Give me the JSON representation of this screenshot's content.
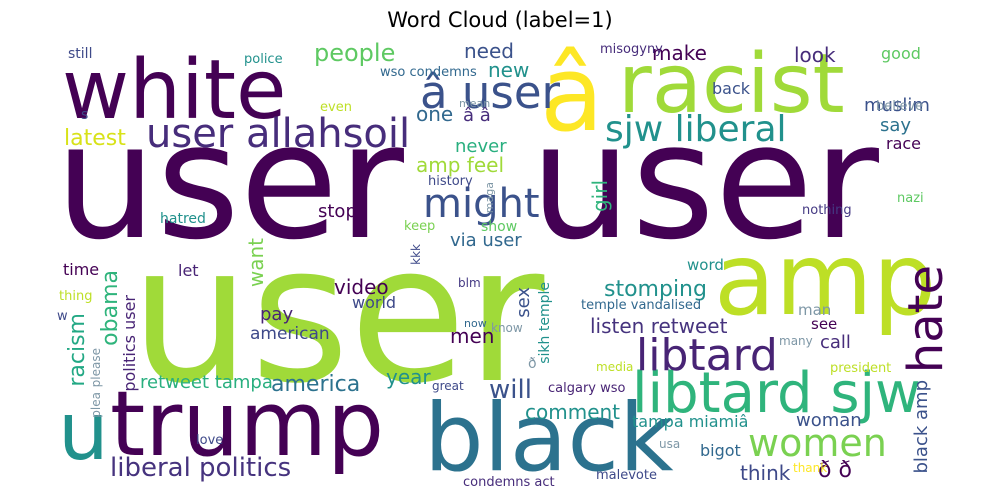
{
  "title": "Word Cloud (label=1)",
  "words": [
    {
      "text": "user",
      "color": "#440154"
    },
    {
      "text": "user",
      "color": "#440154"
    },
    {
      "text": "user",
      "color": "#a0da39"
    },
    {
      "text": "white",
      "color": "#440154"
    },
    {
      "text": "â",
      "color": "#fde725"
    },
    {
      "text": "racist",
      "color": "#a0da39"
    },
    {
      "text": "user allahsoil",
      "color": "#472d7b"
    },
    {
      "text": "â user",
      "color": "#3b528b"
    },
    {
      "text": "sjw liberal",
      "color": "#21918c"
    },
    {
      "text": "might",
      "color": "#3b528b"
    },
    {
      "text": "amp",
      "color": "#bddf26"
    },
    {
      "text": "u",
      "color": "#21918c"
    },
    {
      "text": "trump",
      "color": "#440154"
    },
    {
      "text": "black",
      "color": "#2c728e"
    },
    {
      "text": "libtard sjw",
      "color": "#2fb47c"
    },
    {
      "text": "libtard",
      "color": "#482475"
    },
    {
      "text": "hate",
      "color": "#440154"
    },
    {
      "text": "women",
      "color": "#7ad151"
    },
    {
      "text": "liberal politics",
      "color": "#46337e"
    },
    {
      "text": "people",
      "color": "#5ec962"
    },
    {
      "text": "need",
      "color": "#3b528b"
    },
    {
      "text": "make",
      "color": "#440154"
    },
    {
      "text": "look",
      "color": "#472d7b"
    },
    {
      "text": "good",
      "color": "#5ec962"
    },
    {
      "text": "new",
      "color": "#21918c"
    },
    {
      "text": "one",
      "color": "#31688e"
    },
    {
      "text": "â â",
      "color": "#472d7b"
    },
    {
      "text": "muslim",
      "color": "#3b528b"
    },
    {
      "text": "believe",
      "color": "#7e97a6"
    },
    {
      "text": "back",
      "color": "#3b528b"
    },
    {
      "text": "say",
      "color": "#2c728e"
    },
    {
      "text": "race",
      "color": "#440154"
    },
    {
      "text": "latest",
      "color": "#d8e219"
    },
    {
      "text": "amp feel",
      "color": "#a0da39"
    },
    {
      "text": "never",
      "color": "#29af7f"
    },
    {
      "text": "girl",
      "color": "#2fb47c"
    },
    {
      "text": "stop",
      "color": "#440154"
    },
    {
      "text": "show",
      "color": "#5ec962"
    },
    {
      "text": "via user",
      "color": "#31688e"
    },
    {
      "text": "history",
      "color": "#3e4989"
    },
    {
      "text": "maga",
      "color": "#7e97a6"
    },
    {
      "text": "nazi",
      "color": "#5ec962"
    },
    {
      "text": "nothing",
      "color": "#443983"
    },
    {
      "text": "hatred",
      "color": "#21918c"
    },
    {
      "text": "keep",
      "color": "#7ad151"
    },
    {
      "text": "kkk",
      "color": "#3e4989"
    },
    {
      "text": "still",
      "color": "#3e4989"
    },
    {
      "text": "s",
      "color": "#3e4989"
    },
    {
      "text": "police",
      "color": "#21918c"
    },
    {
      "text": "wso condemns",
      "color": "#31688e"
    },
    {
      "text": "misogyny",
      "color": "#472d7b"
    },
    {
      "text": "even",
      "color": "#bddf26"
    },
    {
      "text": "mean",
      "color": "#7e97a6"
    },
    {
      "text": "time",
      "color": "#440154"
    },
    {
      "text": "let",
      "color": "#482475"
    },
    {
      "text": "want",
      "color": "#7ad151"
    },
    {
      "text": "obama",
      "color": "#2fb47c"
    },
    {
      "text": "racism",
      "color": "#22a884"
    },
    {
      "text": "politics user",
      "color": "#482475"
    },
    {
      "text": "thing",
      "color": "#bddf26"
    },
    {
      "text": "w",
      "color": "#3e4989"
    },
    {
      "text": "please",
      "color": "#7e97a6"
    },
    {
      "text": "plea",
      "color": "#7e97a6"
    },
    {
      "text": "video",
      "color": "#440154"
    },
    {
      "text": "world",
      "color": "#3e4989"
    },
    {
      "text": "pay",
      "color": "#482475"
    },
    {
      "text": "american",
      "color": "#3e4989"
    },
    {
      "text": "america",
      "color": "#2c728e"
    },
    {
      "text": "retweet tampa",
      "color": "#29af7f"
    },
    {
      "text": "year",
      "color": "#21918c"
    },
    {
      "text": "will",
      "color": "#3b528b"
    },
    {
      "text": "comment",
      "color": "#21918c"
    },
    {
      "text": "blm",
      "color": "#443983"
    },
    {
      "text": "sex",
      "color": "#3b528b"
    },
    {
      "text": "men",
      "color": "#440154"
    },
    {
      "text": "now",
      "color": "#31688e"
    },
    {
      "text": "know",
      "color": "#7e97a6"
    },
    {
      "text": "great",
      "color": "#3e4989"
    },
    {
      "text": "sikh temple",
      "color": "#21918c"
    },
    {
      "text": "ð",
      "color": "#7e97a6"
    },
    {
      "text": "calgary wso",
      "color": "#482475"
    },
    {
      "text": "condemns act",
      "color": "#472d7b"
    },
    {
      "text": "malevote",
      "color": "#3e4989"
    },
    {
      "text": "word",
      "color": "#21918c"
    },
    {
      "text": "stomping",
      "color": "#21918c"
    },
    {
      "text": "listen retweet",
      "color": "#46337e"
    },
    {
      "text": "temple vandalised",
      "color": "#31688e"
    },
    {
      "text": "man",
      "color": "#7e97a6"
    },
    {
      "text": "see",
      "color": "#440154"
    },
    {
      "text": "call",
      "color": "#472d7b"
    },
    {
      "text": "many",
      "color": "#7e97a6"
    },
    {
      "text": "media",
      "color": "#bddf26"
    },
    {
      "text": "president",
      "color": "#bddf26"
    },
    {
      "text": "woman",
      "color": "#3b528b"
    },
    {
      "text": "tampa miamiâ",
      "color": "#21918c"
    },
    {
      "text": "black amp",
      "color": "#3b528b"
    },
    {
      "text": "bigot",
      "color": "#31688e"
    },
    {
      "text": "usa",
      "color": "#7e97a6"
    },
    {
      "text": "think",
      "color": "#3e4989"
    },
    {
      "text": "ð ð",
      "color": "#440154"
    },
    {
      "text": "thank",
      "color": "#fde725"
    },
    {
      "text": "love",
      "color": "#3e4989"
    }
  ]
}
